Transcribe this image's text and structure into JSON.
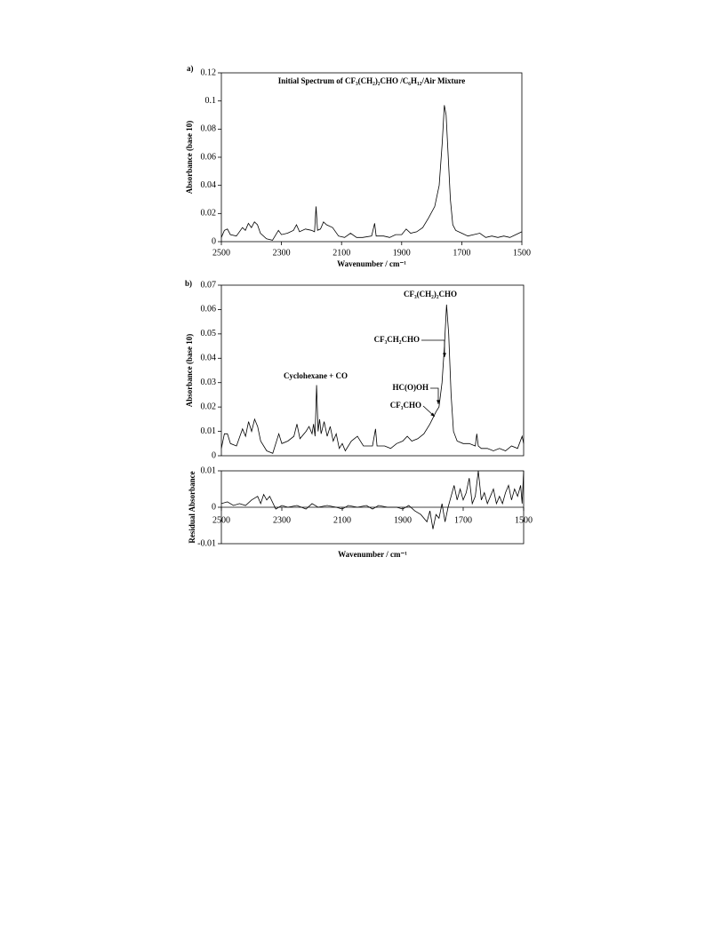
{
  "chart_data": [
    {
      "type": "line",
      "label": "a)",
      "title": "Initial Spectrum of CF₃(CH₂)₂CHO /C₆H₁₂/Air Mixture",
      "y_label": "Absorbance (base 10)",
      "x_label": "Wavenumber / cm⁻¹",
      "xlim": [
        2500,
        1500
      ],
      "xticks": [
        2500,
        2300,
        2100,
        1900,
        1700,
        1500
      ],
      "ylim": [
        0,
        0.12
      ],
      "yticks": [
        0,
        0.02,
        0.04,
        0.06,
        0.08,
        0.1,
        0.12
      ],
      "x": [
        2500,
        2490,
        2480,
        2470,
        2450,
        2430,
        2420,
        2410,
        2400,
        2390,
        2380,
        2370,
        2350,
        2330,
        2310,
        2300,
        2280,
        2260,
        2250,
        2240,
        2220,
        2200,
        2190,
        2185,
        2180,
        2170,
        2160,
        2150,
        2130,
        2110,
        2090,
        2070,
        2050,
        2030,
        2000,
        1990,
        1985,
        1960,
        1940,
        1920,
        1900,
        1885,
        1870,
        1850,
        1830,
        1810,
        1790,
        1775,
        1765,
        1758,
        1752,
        1745,
        1738,
        1730,
        1720,
        1700,
        1680,
        1660,
        1640,
        1620,
        1600,
        1580,
        1560,
        1540,
        1520,
        1500
      ],
      "series": [
        {
          "color": "#000000",
          "values": [
            0.003,
            0.008,
            0.009,
            0.005,
            0.004,
            0.01,
            0.008,
            0.013,
            0.01,
            0.014,
            0.012,
            0.006,
            0.002,
            0.001,
            0.008,
            0.005,
            0.006,
            0.008,
            0.012,
            0.007,
            0.009,
            0.008,
            0.007,
            0.025,
            0.008,
            0.009,
            0.014,
            0.012,
            0.01,
            0.004,
            0.003,
            0.006,
            0.003,
            0.003,
            0.004,
            0.013,
            0.004,
            0.004,
            0.003,
            0.005,
            0.005,
            0.009,
            0.006,
            0.007,
            0.01,
            0.017,
            0.025,
            0.04,
            0.07,
            0.097,
            0.09,
            0.06,
            0.03,
            0.012,
            0.008,
            0.006,
            0.004,
            0.005,
            0.006,
            0.003,
            0.004,
            0.003,
            0.004,
            0.003,
            0.005,
            0.007
          ]
        }
      ]
    },
    {
      "type": "line",
      "label": "b)",
      "y_label": "Absorbance (base 10)",
      "annotations": [
        "CF₃(CH₂)₂CHO",
        "CF₃CH₂CHO",
        "HC(O)OH",
        "CF₃CHO",
        "Cyclohexane + CO"
      ],
      "xlim": [
        2500,
        1500
      ],
      "ylim": [
        0,
        0.07
      ],
      "yticks": [
        0,
        0.01,
        0.02,
        0.03,
        0.04,
        0.05,
        0.06,
        0.07
      ],
      "x": [
        2500,
        2490,
        2480,
        2470,
        2450,
        2430,
        2420,
        2410,
        2400,
        2390,
        2380,
        2370,
        2350,
        2330,
        2310,
        2300,
        2280,
        2260,
        2250,
        2240,
        2220,
        2210,
        2200,
        2195,
        2190,
        2185,
        2180,
        2175,
        2170,
        2160,
        2150,
        2140,
        2130,
        2120,
        2110,
        2100,
        2090,
        2070,
        2050,
        2030,
        2000,
        1990,
        1985,
        1960,
        1940,
        1920,
        1900,
        1885,
        1870,
        1850,
        1830,
        1810,
        1790,
        1780,
        1770,
        1762,
        1755,
        1748,
        1740,
        1732,
        1720,
        1700,
        1680,
        1660,
        1655,
        1650,
        1640,
        1620,
        1600,
        1580,
        1560,
        1540,
        1520,
        1505,
        1500
      ],
      "series": [
        {
          "color": "#000000",
          "values": [
            0.003,
            0.009,
            0.009,
            0.005,
            0.004,
            0.011,
            0.008,
            0.014,
            0.01,
            0.015,
            0.012,
            0.006,
            0.002,
            0.001,
            0.009,
            0.005,
            0.006,
            0.008,
            0.013,
            0.007,
            0.01,
            0.012,
            0.009,
            0.013,
            0.008,
            0.029,
            0.01,
            0.015,
            0.009,
            0.014,
            0.008,
            0.012,
            0.006,
            0.009,
            0.003,
            0.005,
            0.002,
            0.006,
            0.008,
            0.004,
            0.004,
            0.011,
            0.004,
            0.004,
            0.003,
            0.005,
            0.006,
            0.008,
            0.006,
            0.007,
            0.009,
            0.013,
            0.018,
            0.02,
            0.03,
            0.045,
            0.062,
            0.05,
            0.025,
            0.01,
            0.006,
            0.005,
            0.005,
            0.004,
            0.009,
            0.004,
            0.003,
            0.003,
            0.002,
            0.003,
            0.002,
            0.004,
            0.003,
            0.008,
            0.005
          ]
        }
      ]
    },
    {
      "type": "line",
      "y_label": "Residual Absorbance",
      "x_label": "Wavenumber / cm⁻¹",
      "xlim": [
        2500,
        1500
      ],
      "xticks": [
        2500,
        2300,
        2100,
        1900,
        1700,
        1500
      ],
      "ylim": [
        -0.01,
        0.01
      ],
      "yticks": [
        -0.01,
        0,
        0.01
      ],
      "x": [
        2500,
        2480,
        2460,
        2440,
        2420,
        2400,
        2380,
        2370,
        2360,
        2350,
        2340,
        2320,
        2300,
        2280,
        2250,
        2220,
        2200,
        2180,
        2150,
        2120,
        2100,
        2080,
        2050,
        2020,
        2000,
        1980,
        1950,
        1920,
        1900,
        1880,
        1860,
        1840,
        1820,
        1810,
        1800,
        1790,
        1780,
        1770,
        1760,
        1750,
        1740,
        1730,
        1720,
        1710,
        1700,
        1690,
        1680,
        1670,
        1660,
        1650,
        1640,
        1630,
        1620,
        1610,
        1600,
        1590,
        1580,
        1570,
        1560,
        1550,
        1540,
        1530,
        1520,
        1510,
        1505,
        1500
      ],
      "series": [
        {
          "color": "#000000",
          "values": [
            0.001,
            0.0015,
            0.0005,
            0.001,
            0.0005,
            0.002,
            0.003,
            0.001,
            0.0035,
            0.002,
            0.003,
            -0.0005,
            0.0005,
            0.0,
            0.0005,
            -0.0005,
            0.001,
            0.0,
            0.0005,
            0.0,
            -0.0005,
            0.0005,
            0.0,
            0.0005,
            -0.0005,
            0.0005,
            0.0,
            0.0,
            -0.0005,
            0.0005,
            -0.001,
            -0.002,
            -0.004,
            -0.001,
            -0.006,
            -0.002,
            -0.003,
            0.001,
            -0.004,
            0.0,
            0.003,
            0.006,
            0.002,
            0.005,
            0.002,
            0.004,
            0.008,
            0.001,
            0.003,
            0.01,
            0.002,
            0.004,
            0.001,
            0.003,
            0.005,
            0.001,
            0.003,
            0.001,
            0.004,
            0.006,
            0.002,
            0.005,
            0.003,
            0.006,
            0.001,
            0.01
          ]
        }
      ]
    }
  ]
}
